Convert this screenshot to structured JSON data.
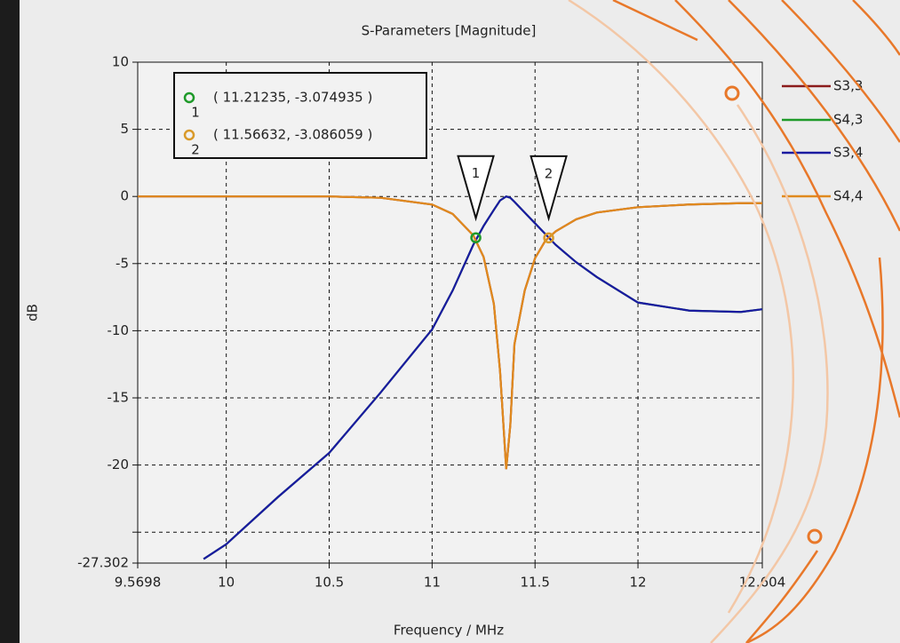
{
  "chart_data": {
    "type": "line",
    "title": "S-Parameters [Magnitude]",
    "x_label": "Frequency / MHz",
    "y_label": "dB",
    "x": [
      9.5698,
      9.89,
      10,
      10.25,
      10.5,
      10.75,
      11,
      11.1,
      11.2,
      11.25,
      11.3,
      11.33,
      11.36,
      11.38,
      11.4,
      11.45,
      11.5,
      11.55,
      11.6,
      11.7,
      11.8,
      12,
      12.25,
      12.5,
      12.604
    ],
    "series": [
      {
        "name": "S3,3",
        "color": "#8b1c1c",
        "values": [
          0,
          0,
          0,
          0,
          0,
          -0.1,
          -0.6,
          -1.3,
          -2.9,
          -4.5,
          -8,
          -13,
          -20.3,
          -17,
          -11,
          -7,
          -4.6,
          -3.3,
          -2.6,
          -1.7,
          -1.2,
          -0.8,
          -0.6,
          -0.5,
          -0.5
        ]
      },
      {
        "name": "S4,3",
        "color": "#1f9a2a",
        "values": [
          null,
          -27,
          -25.9,
          -22.4,
          -19.1,
          -14.6,
          -9.9,
          -7,
          -3.6,
          -2.2,
          -1,
          -0.3,
          0,
          -0.1,
          -0.4,
          -1.2,
          -2,
          -2.8,
          -3.6,
          -4.9,
          -6,
          -7.9,
          -8.5,
          -8.6,
          -8.4
        ]
      },
      {
        "name": "S3,4",
        "color": "#1a1aa0",
        "values": [
          null,
          -27,
          -25.9,
          -22.4,
          -19.1,
          -14.6,
          -9.9,
          -7,
          -3.6,
          -2.2,
          -1,
          -0.3,
          0,
          -0.1,
          -0.4,
          -1.2,
          -2,
          -2.8,
          -3.6,
          -4.9,
          -6,
          -7.9,
          -8.5,
          -8.6,
          -8.4
        ]
      },
      {
        "name": "S4,4",
        "color": "#e08a1e",
        "values": [
          0,
          0,
          0,
          0,
          0,
          -0.1,
          -0.6,
          -1.3,
          -2.9,
          -4.5,
          -8,
          -13,
          -20.3,
          -17,
          -11,
          -7,
          -4.6,
          -3.3,
          -2.6,
          -1.7,
          -1.2,
          -0.8,
          -0.6,
          -0.5,
          -0.5
        ]
      }
    ],
    "markers": [
      {
        "name": "1",
        "x": 11.21235,
        "y": -3.074935,
        "label": "( 11.21235, -3.074935 )",
        "color": "#1f9a2a"
      },
      {
        "name": "2",
        "x": 11.56632,
        "y": -3.086059,
        "label": "( 11.56632, -3.086059 )",
        "color": "#d99a2a"
      }
    ],
    "xlim": [
      9.5698,
      12.604
    ],
    "ylim": [
      -27.302,
      10
    ],
    "xticks": [
      9.5698,
      10,
      10.5,
      11,
      11.5,
      12,
      12.604
    ],
    "yticks": [
      10,
      5,
      0,
      -5,
      -10,
      -15,
      -20,
      {
        "value": -25,
        "label": null
      },
      -27.302
    ],
    "grid": true,
    "legend": "right"
  }
}
